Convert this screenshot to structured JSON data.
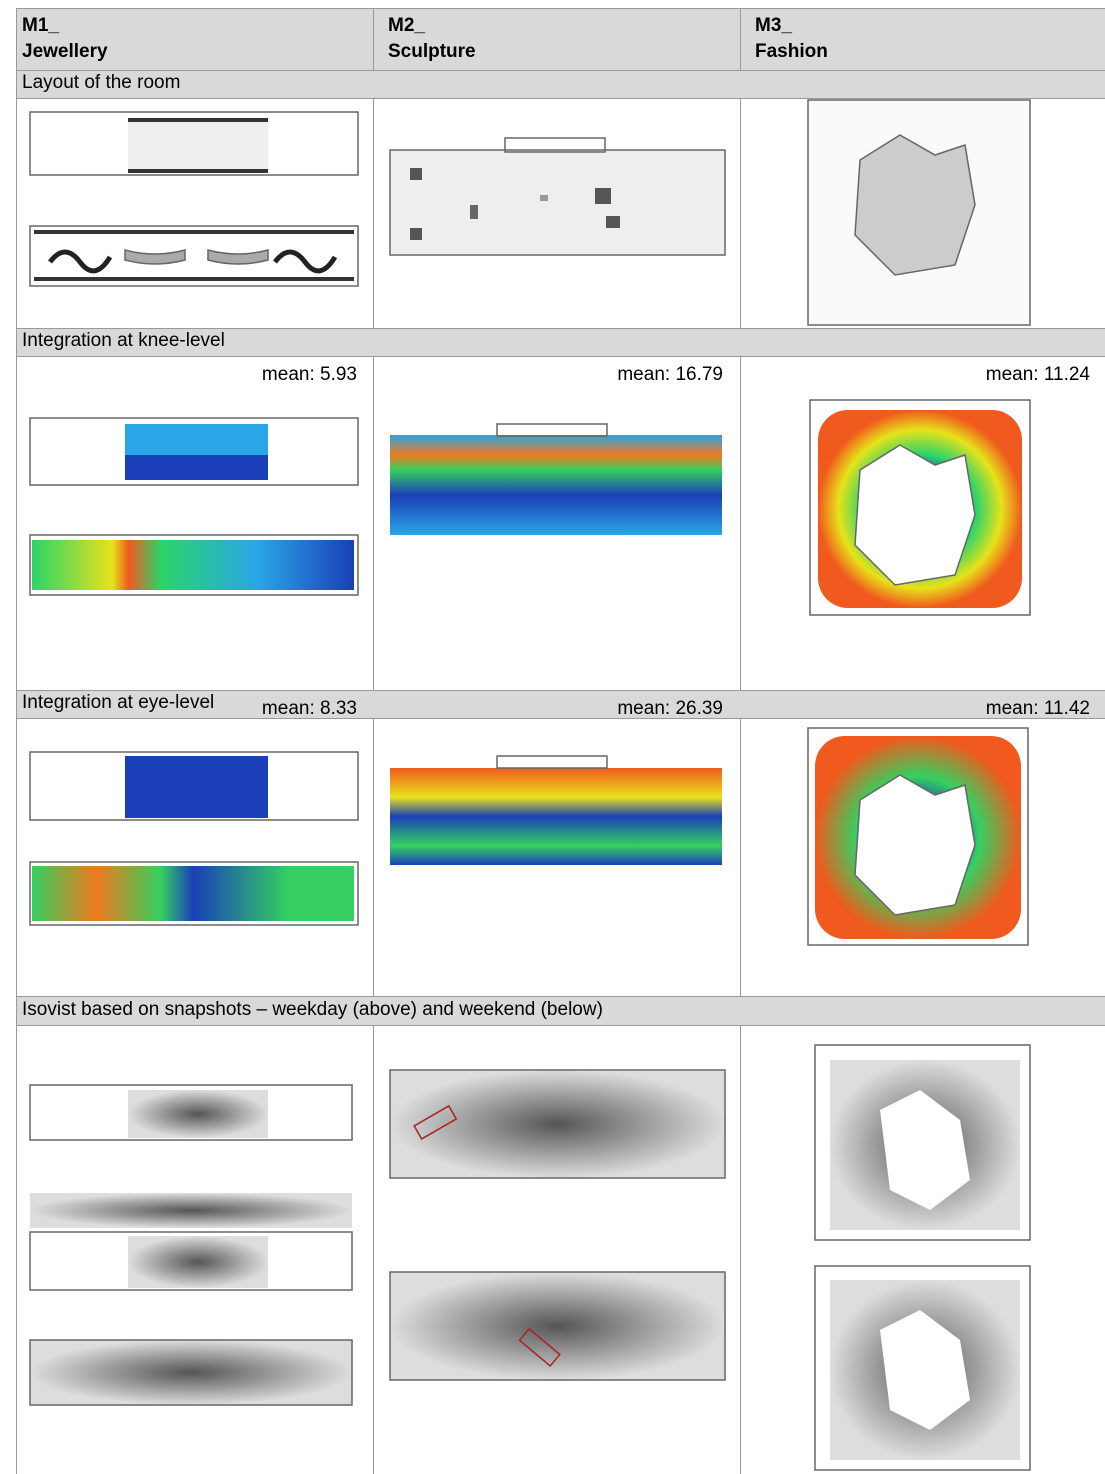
{
  "table": {
    "header": [
      [
        "M1_",
        "Jewellery"
      ],
      [
        "M2_",
        "Sculpture"
      ],
      [
        "M3_",
        "Fashion"
      ]
    ],
    "sections": [
      {
        "title": "Layout of the room"
      },
      {
        "title": "Integration at knee-level",
        "means": [
          "mean: 5.93",
          "mean: 16.79",
          "mean: 11.24"
        ]
      },
      {
        "title": "Integration at eye-level",
        "means": [
          "mean: 8.33",
          "mean: 26.39",
          "mean: 11.42"
        ]
      },
      {
        "title": "Isovist based on snapshots – weekday (above) and weekend (below)"
      }
    ]
  }
}
